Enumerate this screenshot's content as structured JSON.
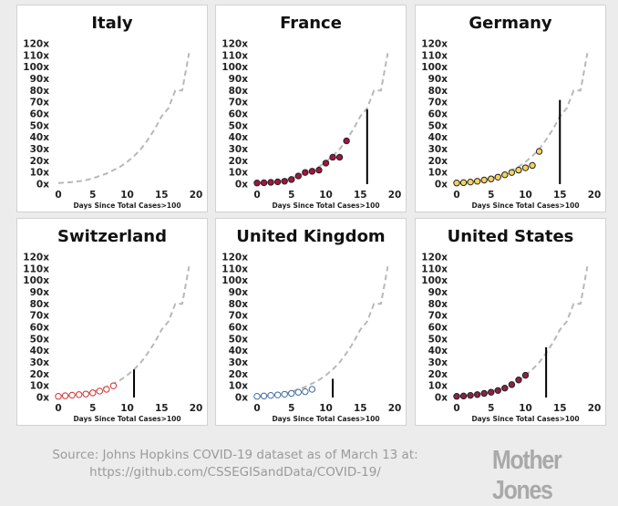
{
  "chart_data": [
    {
      "type": "scatter",
      "title": "Italy",
      "xlabel": "Days Since Total Cases>100",
      "ylabel": "",
      "xlim": [
        0,
        20
      ],
      "ylim": [
        0,
        120
      ],
      "xticks": [
        0,
        5,
        10,
        15,
        20
      ],
      "yticks": [
        "0x",
        "10x",
        "20x",
        "30x",
        "40x",
        "50x",
        "60x",
        "70x",
        "80x",
        "90x",
        "100x",
        "110x",
        "120x"
      ],
      "reference": {
        "style": "dashed",
        "color": "#b8b8b8",
        "x": [
          0,
          1,
          2,
          3,
          4,
          5,
          6,
          7,
          8,
          9,
          10,
          11,
          12,
          13,
          14,
          15,
          16,
          17,
          18,
          19
        ],
        "y": [
          1,
          1.3,
          1.8,
          2.5,
          3.4,
          5,
          7,
          9,
          12,
          15,
          19,
          24,
          30,
          38,
          47,
          58,
          65,
          80,
          80,
          112
        ]
      },
      "points": {
        "fill": "none",
        "stroke": "#000000",
        "x": [],
        "y": []
      },
      "marker_line": null
    },
    {
      "type": "scatter",
      "title": "France",
      "xlabel": "Days Since Total Cases>100",
      "ylabel": "",
      "xlim": [
        0,
        20
      ],
      "ylim": [
        0,
        120
      ],
      "xticks": [
        0,
        5,
        10,
        15,
        20
      ],
      "yticks": [
        "0x",
        "10x",
        "20x",
        "30x",
        "40x",
        "50x",
        "60x",
        "70x",
        "80x",
        "90x",
        "100x",
        "110x",
        "120x"
      ],
      "reference": {
        "style": "dashed",
        "color": "#b8b8b8",
        "x": [
          0,
          1,
          2,
          3,
          4,
          5,
          6,
          7,
          8,
          9,
          10,
          11,
          12,
          13,
          14,
          15,
          16,
          17,
          18,
          19
        ],
        "y": [
          1,
          1.3,
          1.8,
          2.5,
          3.4,
          5,
          7,
          9,
          12,
          15,
          19,
          24,
          30,
          38,
          47,
          58,
          65,
          80,
          80,
          112
        ]
      },
      "points": {
        "fill": "#a3143e",
        "stroke": "#222222",
        "x": [
          0,
          1,
          2,
          3,
          4,
          5,
          6,
          7,
          8,
          9,
          10,
          11,
          12,
          13
        ],
        "y": [
          1,
          1.2,
          1.6,
          2,
          2.5,
          4,
          7,
          10,
          11,
          12,
          18,
          23,
          23,
          37
        ]
      },
      "marker_line": {
        "x": 16,
        "y": 64
      }
    },
    {
      "type": "scatter",
      "title": "Germany",
      "xlabel": "Days Since Total Cases>100",
      "ylabel": "",
      "xlim": [
        0,
        20
      ],
      "ylim": [
        0,
        120
      ],
      "xticks": [
        0,
        5,
        10,
        15,
        20
      ],
      "yticks": [
        "0x",
        "10x",
        "20x",
        "30x",
        "40x",
        "50x",
        "60x",
        "70x",
        "80x",
        "90x",
        "100x",
        "110x",
        "120x"
      ],
      "reference": {
        "style": "dashed",
        "color": "#b8b8b8",
        "x": [
          0,
          1,
          2,
          3,
          4,
          5,
          6,
          7,
          8,
          9,
          10,
          11,
          12,
          13,
          14,
          15,
          16,
          17,
          18,
          19
        ],
        "y": [
          1,
          1.3,
          1.8,
          2.5,
          3.4,
          5,
          7,
          9,
          12,
          15,
          19,
          24,
          30,
          38,
          47,
          58,
          65,
          80,
          80,
          112
        ]
      },
      "points": {
        "fill": "#f4d35e",
        "stroke": "#222222",
        "x": [
          0,
          1,
          2,
          3,
          4,
          5,
          6,
          7,
          8,
          9,
          10,
          11,
          12
        ],
        "y": [
          1,
          1.3,
          1.8,
          2.5,
          3.5,
          4.5,
          6,
          8,
          10,
          12,
          14,
          16,
          28
        ]
      },
      "marker_line": {
        "x": 15,
        "y": 72
      }
    },
    {
      "type": "scatter",
      "title": "Switzerland",
      "xlabel": "Days Since Total Cases>100",
      "ylabel": "",
      "xlim": [
        0,
        20
      ],
      "ylim": [
        0,
        120
      ],
      "xticks": [
        0,
        5,
        10,
        15,
        20
      ],
      "yticks": [
        "0x",
        "10x",
        "20x",
        "30x",
        "40x",
        "50x",
        "60x",
        "70x",
        "80x",
        "90x",
        "100x",
        "110x",
        "120x"
      ],
      "reference": {
        "style": "dashed",
        "color": "#b8b8b8",
        "x": [
          0,
          1,
          2,
          3,
          4,
          5,
          6,
          7,
          8,
          9,
          10,
          11,
          12,
          13,
          14,
          15,
          16,
          17,
          18,
          19
        ],
        "y": [
          1,
          1.3,
          1.8,
          2.5,
          3.4,
          5,
          7,
          9,
          12,
          15,
          19,
          24,
          30,
          38,
          47,
          58,
          65,
          80,
          80,
          112
        ]
      },
      "points": {
        "fill": "#ffffff",
        "stroke": "#d32f2f",
        "x": [
          0,
          1,
          2,
          3,
          4,
          5,
          6,
          7,
          8
        ],
        "y": [
          1,
          1.5,
          2,
          2.5,
          3,
          4,
          5.5,
          7,
          10
        ]
      },
      "marker_line": {
        "x": 11,
        "y": 24
      }
    },
    {
      "type": "scatter",
      "title": "United Kingdom",
      "xlabel": "Days Since Total Cases>100",
      "ylabel": "",
      "xlim": [
        0,
        20
      ],
      "ylim": [
        0,
        120
      ],
      "xticks": [
        0,
        5,
        10,
        15,
        20
      ],
      "yticks": [
        "0x",
        "10x",
        "20x",
        "30x",
        "40x",
        "50x",
        "60x",
        "70x",
        "80x",
        "90x",
        "100x",
        "110x",
        "120x"
      ],
      "reference": {
        "style": "dashed",
        "color": "#b8b8b8",
        "x": [
          0,
          1,
          2,
          3,
          4,
          5,
          6,
          7,
          8,
          9,
          10,
          11,
          12,
          13,
          14,
          15,
          16,
          17,
          18,
          19
        ],
        "y": [
          1,
          1.3,
          1.8,
          2.5,
          3.4,
          5,
          7,
          9,
          12,
          15,
          19,
          24,
          30,
          38,
          47,
          58,
          65,
          80,
          80,
          112
        ]
      },
      "points": {
        "fill": "#ffffff",
        "stroke": "#3d6a9e",
        "x": [
          0,
          1,
          2,
          3,
          4,
          5,
          6,
          7,
          8
        ],
        "y": [
          1,
          1.3,
          1.8,
          2.2,
          2.8,
          3.5,
          4.5,
          5,
          7
        ]
      },
      "marker_line": {
        "x": 11,
        "y": 16
      }
    },
    {
      "type": "scatter",
      "title": "United States",
      "xlabel": "Days Since Total Cases>100",
      "ylabel": "",
      "xlim": [
        0,
        20
      ],
      "ylim": [
        0,
        120
      ],
      "xticks": [
        0,
        5,
        10,
        15,
        20
      ],
      "yticks": [
        "0x",
        "10x",
        "20x",
        "30x",
        "40x",
        "50x",
        "60x",
        "70x",
        "80x",
        "90x",
        "100x",
        "110x",
        "120x"
      ],
      "reference": {
        "style": "dashed",
        "color": "#b8b8b8",
        "x": [
          0,
          1,
          2,
          3,
          4,
          5,
          6,
          7,
          8,
          9,
          10,
          11,
          12,
          13,
          14,
          15,
          16,
          17,
          18,
          19
        ],
        "y": [
          1,
          1.3,
          1.8,
          2.5,
          3.4,
          5,
          7,
          9,
          12,
          15,
          19,
          24,
          30,
          38,
          47,
          58,
          65,
          80,
          80,
          112
        ]
      },
      "points": {
        "fill": "#8b2146",
        "stroke": "#222222",
        "x": [
          0,
          1,
          2,
          3,
          4,
          5,
          6,
          7,
          8,
          9,
          10
        ],
        "y": [
          1,
          1.3,
          1.8,
          2.5,
          3.5,
          4.5,
          6,
          8,
          11,
          15,
          19
        ]
      },
      "marker_line": {
        "x": 13,
        "y": 43
      }
    }
  ],
  "footer": {
    "source_line1": "Source: Johns Hopkins COVID-19 dataset as of March 13 at:",
    "source_line2": "https://github.com/CSSEGISandData/COVID-19/",
    "brand": "Mother Jones"
  }
}
